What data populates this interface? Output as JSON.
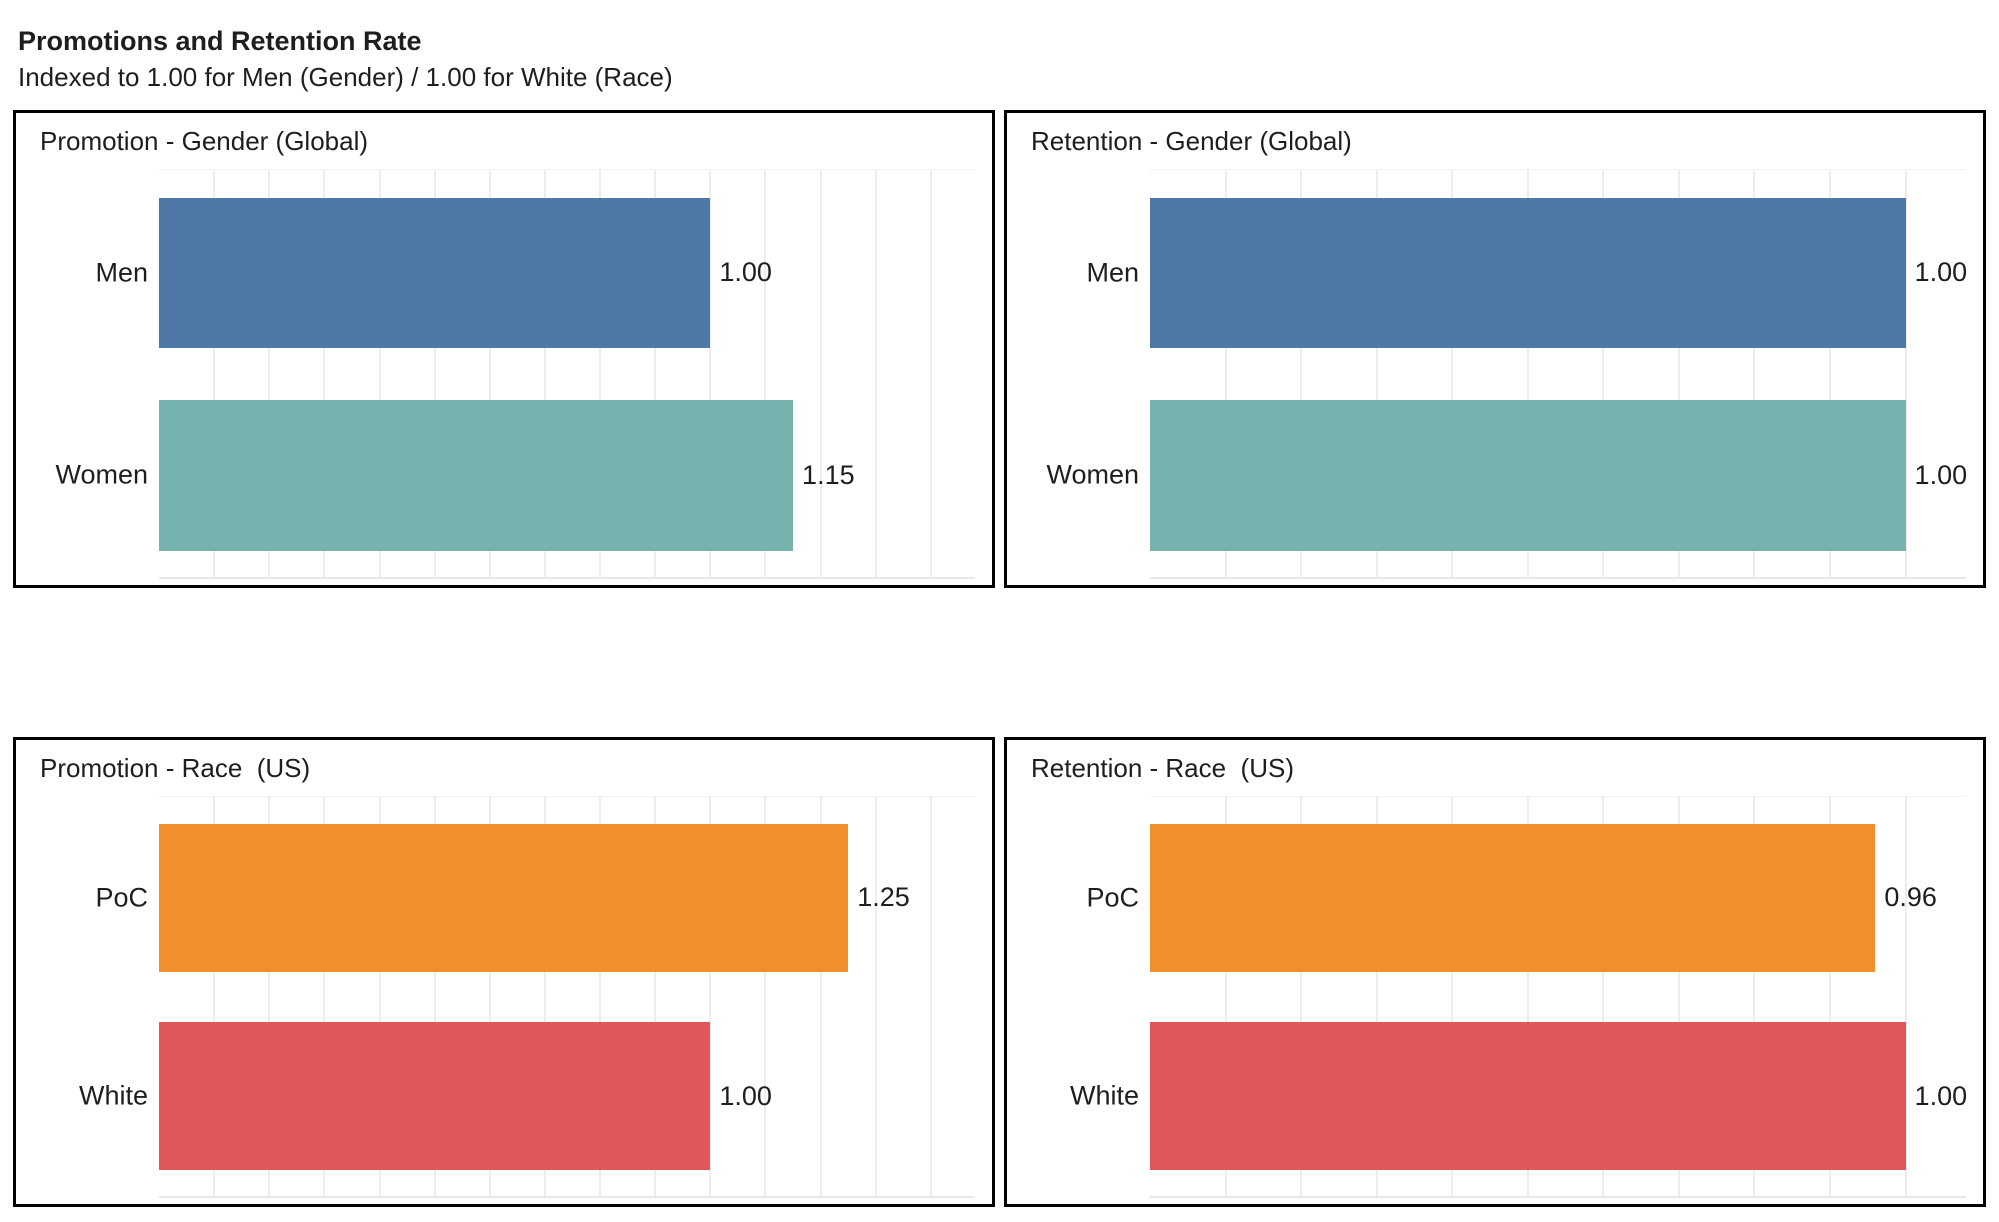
{
  "page": {
    "title": "Promotions and Retention Rate",
    "subtitle": "Indexed to 1.00 for Men (Gender) / 1.00 for White (Race)"
  },
  "palette": {
    "men_blue": "#4e79a7",
    "women_teal": "#76b2ae",
    "poc_orange": "#f28e2b",
    "white_red": "#e15759",
    "gridline_gray": "#ededed",
    "panel_border": "#000000",
    "text": "#1e1e1e",
    "background": "#ffffff"
  },
  "chart_data": [
    {
      "type": "bar",
      "orientation": "horizontal",
      "title": "Promotion - Gender (Global)",
      "categories": [
        "Men",
        "Women"
      ],
      "values": [
        1.0,
        1.15
      ],
      "labels": [
        "1.00",
        "1.15"
      ],
      "colors": [
        "#4e79a7",
        "#76b2ae"
      ],
      "xlim": [
        0,
        1.48
      ],
      "grid_step": 0.1,
      "grid": true,
      "legend": false,
      "value_label_position": "end-of-bar"
    },
    {
      "type": "bar",
      "orientation": "horizontal",
      "title": "Retention - Gender (Global)",
      "categories": [
        "Men",
        "Women"
      ],
      "values": [
        1.0,
        1.0
      ],
      "labels": [
        "1.00",
        "1.00"
      ],
      "colors": [
        "#4e79a7",
        "#76b2ae"
      ],
      "xlim": [
        0,
        1.08
      ],
      "grid_step": 0.1,
      "grid": true,
      "legend": false,
      "value_label_position": "end-of-bar"
    },
    {
      "type": "bar",
      "orientation": "horizontal",
      "title": "Promotion - Race  (US)",
      "categories": [
        "PoC",
        "White"
      ],
      "values": [
        1.25,
        1.0
      ],
      "labels": [
        "1.25",
        "1.00"
      ],
      "colors": [
        "#f28e2b",
        "#e15759"
      ],
      "xlim": [
        0,
        1.48
      ],
      "grid_step": 0.1,
      "grid": true,
      "legend": false,
      "value_label_position": "end-of-bar"
    },
    {
      "type": "bar",
      "orientation": "horizontal",
      "title": "Retention - Race  (US)",
      "categories": [
        "PoC",
        "White"
      ],
      "values": [
        0.96,
        1.0
      ],
      "labels": [
        "0.96",
        "1.00"
      ],
      "colors": [
        "#f28e2b",
        "#e15759"
      ],
      "xlim": [
        0,
        1.08
      ],
      "grid_step": 0.1,
      "grid": true,
      "legend": false,
      "value_label_position": "end-of-bar"
    }
  ]
}
